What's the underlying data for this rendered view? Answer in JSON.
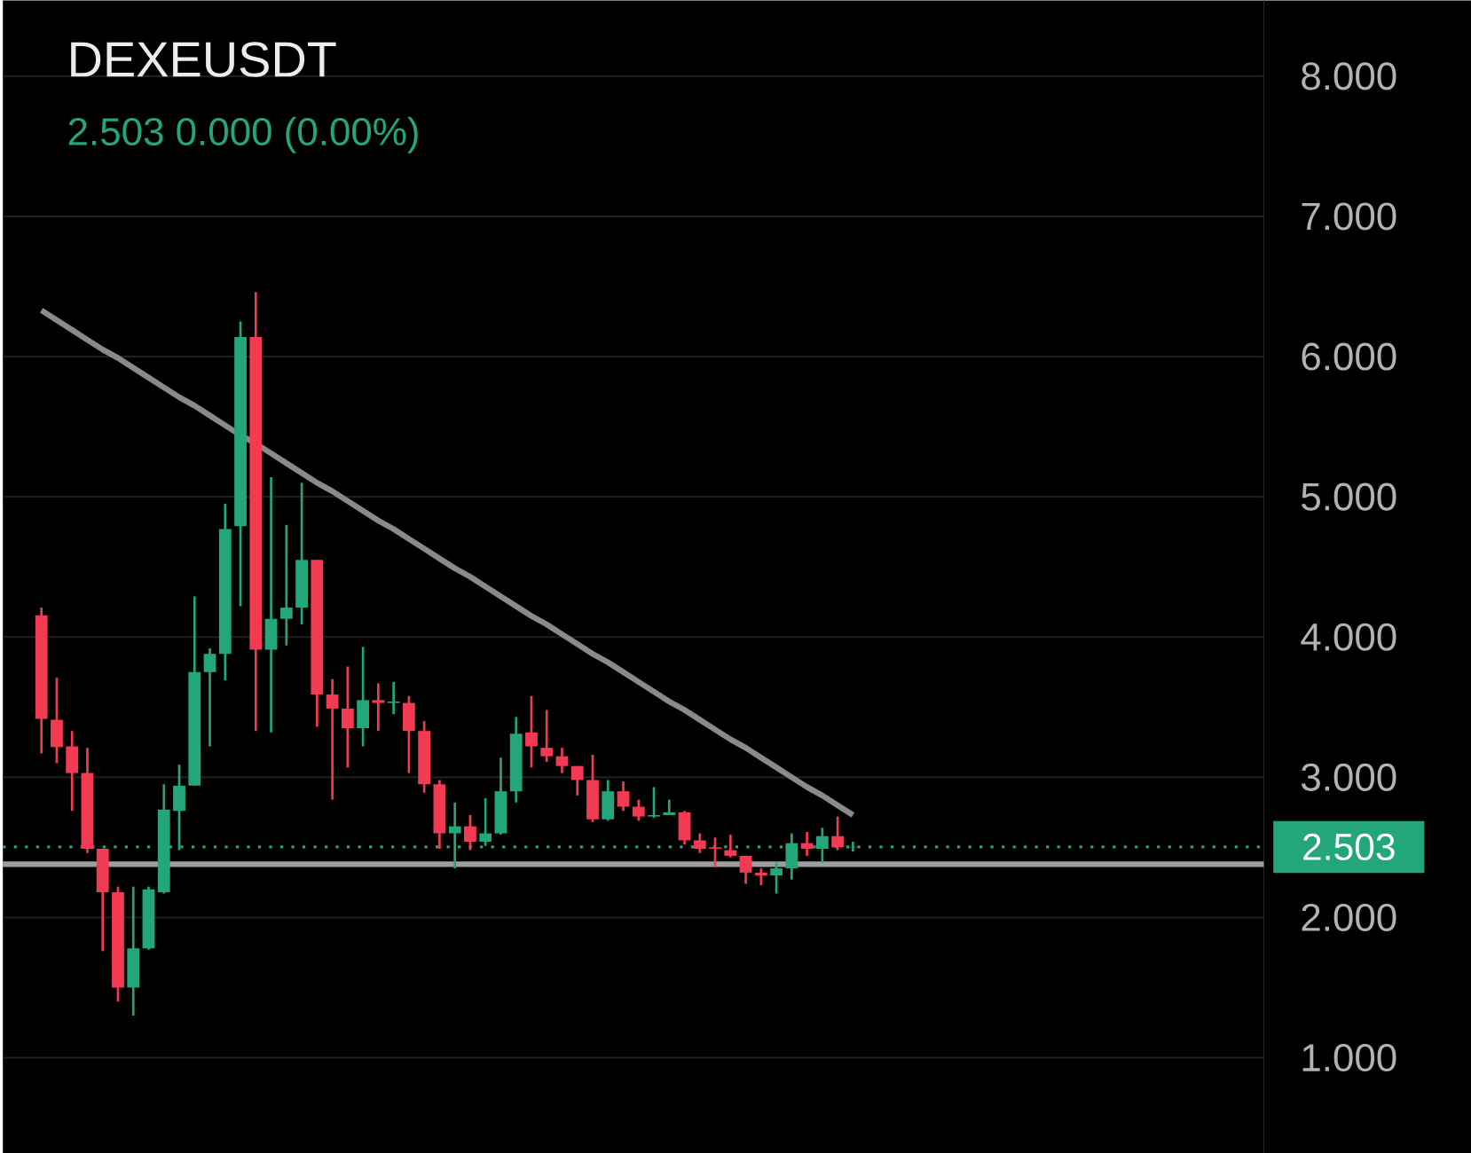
{
  "chart_data": {
    "type": "candlestick",
    "title": "DEXEUSDT",
    "subtitle": "2.503  0.000 (0.00%)",
    "categories": [
      null,
      null,
      null,
      null,
      null,
      null,
      null,
      null,
      null,
      null,
      null,
      null,
      null,
      null,
      null,
      null,
      null,
      null,
      null,
      null,
      null,
      null,
      null,
      null,
      null,
      null,
      null,
      null,
      null,
      null,
      null,
      null,
      null,
      null,
      null,
      null,
      null,
      null,
      null,
      null,
      null,
      null,
      null,
      null,
      null,
      null,
      null,
      null,
      null,
      null,
      null,
      null,
      null,
      null
    ],
    "ohlc": [
      [
        4.155,
        4.21,
        3.17,
        3.417
      ],
      [
        3.41,
        3.71,
        3.1,
        3.215
      ],
      [
        3.22,
        3.33,
        2.76,
        3.03
      ],
      [
        3.03,
        3.21,
        2.46,
        2.49
      ],
      [
        2.49,
        2.49,
        1.76,
        2.18
      ],
      [
        2.18,
        2.22,
        1.4,
        1.5
      ],
      [
        1.5,
        2.22,
        1.3,
        1.78
      ],
      [
        1.78,
        2.22,
        1.77,
        2.2
      ],
      [
        2.18,
        2.95,
        2.17,
        2.77
      ],
      [
        2.76,
        3.09,
        2.48,
        2.94
      ],
      [
        2.94,
        4.29,
        2.94,
        3.75
      ],
      [
        3.75,
        3.92,
        3.22,
        3.88
      ],
      [
        3.88,
        4.95,
        3.69,
        4.77
      ],
      [
        4.79,
        6.25,
        4.22,
        6.14
      ],
      [
        6.14,
        6.46,
        3.33,
        3.91
      ],
      [
        3.91,
        5.14,
        3.32,
        4.13
      ],
      [
        4.13,
        4.8,
        3.94,
        4.21
      ],
      [
        4.21,
        5.1,
        4.09,
        4.55
      ],
      [
        4.55,
        4.55,
        3.36,
        3.59
      ],
      [
        3.59,
        3.7,
        2.84,
        3.49
      ],
      [
        3.49,
        3.79,
        3.07,
        3.35
      ],
      [
        3.35,
        3.93,
        3.22,
        3.55
      ],
      [
        3.55,
        3.67,
        3.33,
        3.53
      ],
      [
        3.53,
        3.68,
        3.45,
        3.54
      ],
      [
        3.53,
        3.58,
        3.03,
        3.33
      ],
      [
        3.33,
        3.4,
        2.89,
        2.95
      ],
      [
        2.95,
        2.98,
        2.49,
        2.6
      ],
      [
        2.6,
        2.82,
        2.35,
        2.65
      ],
      [
        2.65,
        2.73,
        2.48,
        2.54
      ],
      [
        2.54,
        2.85,
        2.51,
        2.6
      ],
      [
        2.6,
        3.14,
        2.59,
        2.9
      ],
      [
        2.9,
        3.43,
        2.82,
        3.31
      ],
      [
        3.32,
        3.58,
        3.07,
        3.22
      ],
      [
        3.21,
        3.48,
        3.11,
        3.15
      ],
      [
        3.15,
        3.21,
        3.03,
        3.08
      ],
      [
        3.08,
        3.08,
        2.87,
        2.98
      ],
      [
        2.98,
        3.16,
        2.68,
        2.7
      ],
      [
        2.7,
        2.98,
        2.69,
        2.9
      ],
      [
        2.9,
        2.97,
        2.76,
        2.79
      ],
      [
        2.79,
        2.84,
        2.69,
        2.72
      ],
      [
        2.72,
        2.93,
        2.71,
        2.73
      ],
      [
        2.73,
        2.84,
        2.73,
        2.75
      ],
      [
        2.75,
        2.76,
        2.52,
        2.55
      ],
      [
        2.55,
        2.6,
        2.46,
        2.49
      ],
      [
        2.5,
        2.57,
        2.36,
        2.49
      ],
      [
        2.48,
        2.59,
        2.43,
        2.44
      ],
      [
        2.44,
        2.44,
        2.24,
        2.32
      ],
      [
        2.32,
        2.35,
        2.23,
        2.3
      ],
      [
        2.3,
        2.39,
        2.17,
        2.35
      ],
      [
        2.35,
        2.6,
        2.27,
        2.53
      ],
      [
        2.53,
        2.61,
        2.44,
        2.49
      ],
      [
        2.49,
        2.64,
        2.39,
        2.58
      ],
      [
        2.58,
        2.72,
        2.48,
        2.5
      ],
      [
        2.5,
        2.54,
        2.47,
        2.503
      ]
    ],
    "colors": [
      "#f23a52",
      "#f23a52",
      "#f23a52",
      "#f23a52",
      "#f23a52",
      "#f23a52",
      "#22a67a",
      "#22a67a",
      "#22a67a",
      "#22a67a",
      "#22a67a",
      "#22a67a",
      "#22a67a",
      "#22a67a",
      "#f23a52",
      "#22a67a",
      "#22a67a",
      "#22a67a",
      "#f23a52",
      "#f23a52",
      "#f23a52",
      "#22a67a",
      "#f23a52",
      "#22a67a",
      "#f23a52",
      "#f23a52",
      "#f23a52",
      "#22a67a",
      "#f23a52",
      "#22a67a",
      "#22a67a",
      "#22a67a",
      "#f23a52",
      "#f23a52",
      "#f23a52",
      "#f23a52",
      "#f23a52",
      "#22a67a",
      "#f23a52",
      "#f23a52",
      "#22a67a",
      "#22a67a",
      "#f23a52",
      "#f23a52",
      "#f23a52",
      "#f23a52",
      "#f23a52",
      "#f23a52",
      "#22a67a",
      "#22a67a",
      "#f23a52",
      "#22a67a",
      "#f23a52",
      "#22a67a"
    ],
    "series": [
      {
        "type": "line",
        "values": [
          6.33,
          6.26,
          6.19,
          6.12,
          6.05,
          5.99,
          5.92,
          5.85,
          5.78,
          5.71,
          5.65,
          5.58,
          5.51,
          5.44,
          5.38,
          5.31,
          5.24,
          5.17,
          5.1,
          5.04,
          4.97,
          4.9,
          4.83,
          4.77,
          4.7,
          4.63,
          4.56,
          4.49,
          4.43,
          4.36,
          4.29,
          4.22,
          4.15,
          4.09,
          4.02,
          3.95,
          3.88,
          3.82,
          3.75,
          3.68,
          3.61,
          3.54,
          3.48,
          3.41,
          3.34,
          3.27,
          3.21,
          3.14,
          3.07,
          3.0,
          2.93,
          2.87,
          2.8,
          2.73
        ],
        "color": "#8a8a8a"
      }
    ],
    "ylim": [
      0.32,
      8.54
    ],
    "yticks": [
      {
        "value": 1,
        "label": "1.000"
      },
      {
        "value": 2,
        "label": "2.000"
      },
      {
        "value": 3,
        "label": "3.000"
      },
      {
        "value": 4,
        "label": "4.000"
      },
      {
        "value": 5,
        "label": "5.000"
      },
      {
        "value": 6,
        "label": "6.000"
      },
      {
        "value": 7,
        "label": "7.000"
      },
      {
        "value": 8,
        "label": "8.000"
      }
    ],
    "ref_lines": [
      {
        "axis": "y",
        "value": 2.38,
        "color": "#9e9e9e"
      },
      {
        "axis": "y",
        "value": 2.503,
        "label": "2.503",
        "color": "#22a67a",
        "line_style": "dotted"
      }
    ],
    "grid": "y",
    "tick_labels": "y"
  }
}
